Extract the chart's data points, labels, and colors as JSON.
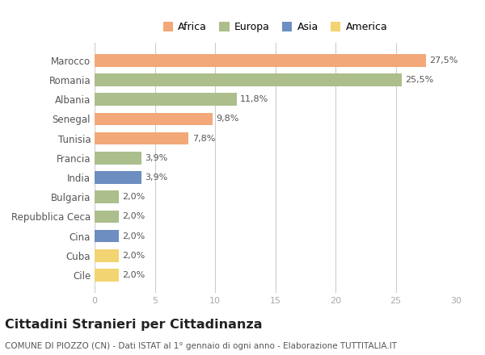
{
  "countries": [
    "Marocco",
    "Romania",
    "Albania",
    "Senegal",
    "Tunisia",
    "Francia",
    "India",
    "Bulgaria",
    "Repubblica Ceca",
    "Cina",
    "Cuba",
    "Cile"
  ],
  "values": [
    27.5,
    25.5,
    11.8,
    9.8,
    7.8,
    3.9,
    3.9,
    2.0,
    2.0,
    2.0,
    2.0,
    2.0
  ],
  "labels": [
    "27,5%",
    "25,5%",
    "11,8%",
    "9,8%",
    "7,8%",
    "3,9%",
    "3,9%",
    "2,0%",
    "2,0%",
    "2,0%",
    "2,0%",
    "2,0%"
  ],
  "continents": [
    "Africa",
    "Europa",
    "Europa",
    "Africa",
    "Africa",
    "Europa",
    "Asia",
    "Europa",
    "Europa",
    "Asia",
    "America",
    "America"
  ],
  "continent_colors": {
    "Africa": "#F2A878",
    "Europa": "#ABBE8C",
    "Asia": "#6C8EC0",
    "America": "#F2D472"
  },
  "legend_order": [
    "Africa",
    "Europa",
    "Asia",
    "America"
  ],
  "xlim": [
    0,
    30
  ],
  "xticks": [
    0,
    5,
    10,
    15,
    20,
    25,
    30
  ],
  "title": "Cittadini Stranieri per Cittadinanza",
  "subtitle": "COMUNE DI PIOZZO (CN) - Dati ISTAT al 1° gennaio di ogni anno - Elaborazione TUTTITALIA.IT",
  "background_color": "#ffffff",
  "bar_height": 0.65,
  "label_fontsize": 8.0,
  "ytick_fontsize": 8.5,
  "xtick_fontsize": 8.0,
  "title_fontsize": 11.5,
  "subtitle_fontsize": 7.5,
  "legend_fontsize": 9.0
}
